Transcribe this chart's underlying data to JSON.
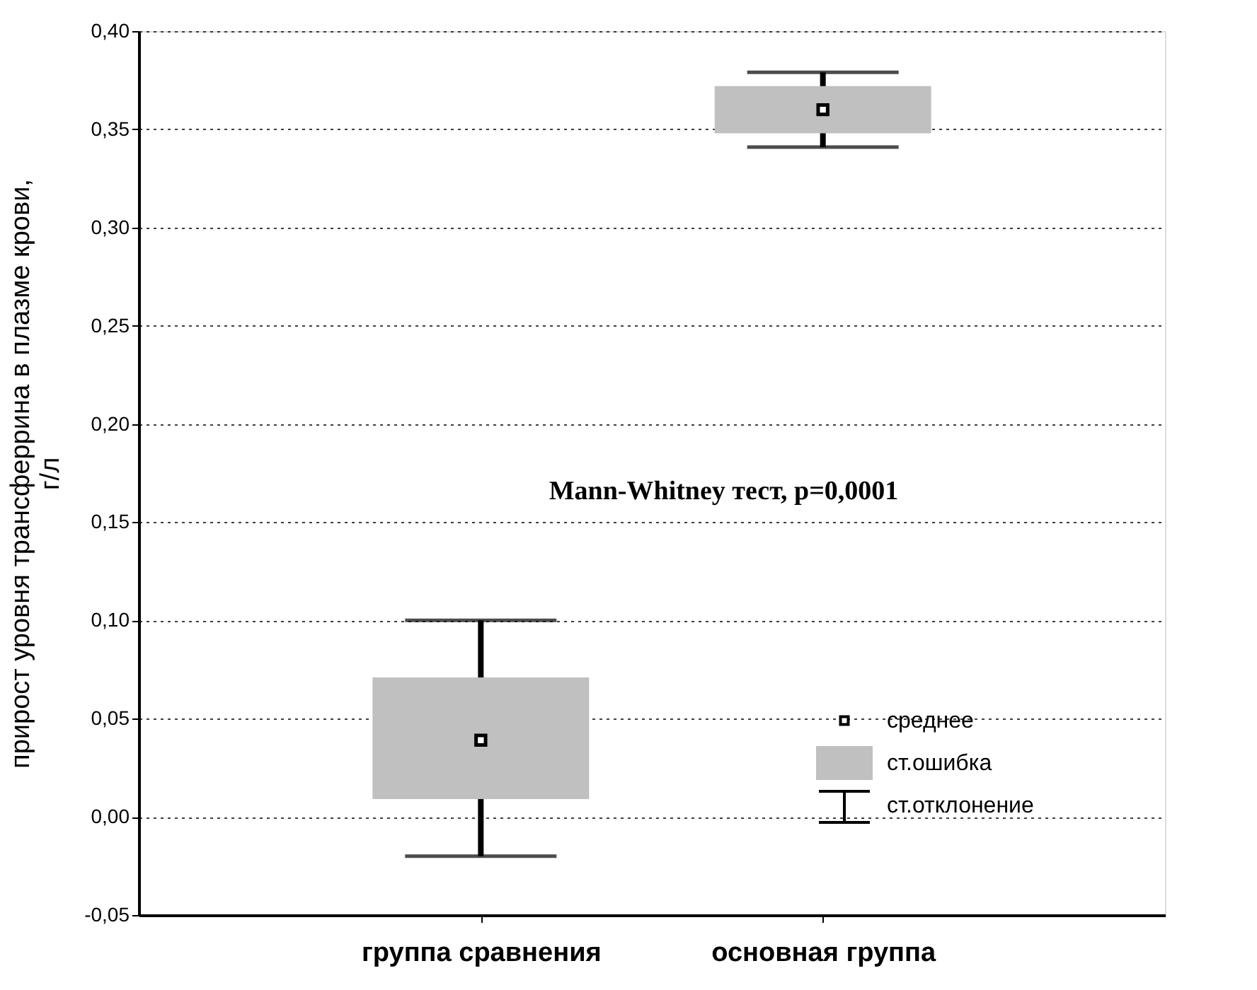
{
  "chart_data": {
    "type": "box",
    "categories": [
      "группа сравнения",
      "основная группа"
    ],
    "boxes": [
      {
        "low": -0.02,
        "q1": 0.009,
        "median": 0.039,
        "q3": 0.071,
        "high": 0.1
      },
      {
        "low": 0.341,
        "q1": 0.348,
        "median": 0.36,
        "q3": 0.372,
        "high": 0.379
      }
    ],
    "color": "#c0c0c0",
    "ylabel": "прирост уровня трансферрина в плазме крови, г/л",
    "ylim": [
      -0.05,
      0.4
    ],
    "yticks": [
      {
        "value": -0.05,
        "label": "-0,05"
      },
      {
        "value": 0,
        "label": "0,00"
      },
      {
        "value": 0.05,
        "label": "0,05"
      },
      {
        "value": 0.1,
        "label": "0,10"
      },
      {
        "value": 0.15,
        "label": "0,15"
      },
      {
        "value": 0.2,
        "label": "0,20"
      },
      {
        "value": 0.25,
        "label": "0,25"
      },
      {
        "value": 0.3,
        "label": "0,30"
      },
      {
        "value": 0.35,
        "label": "0,35"
      },
      {
        "value": 0.4,
        "label": "0,40"
      }
    ],
    "grid": "y",
    "annotations": [
      "Mann-Whitney тест, p=0,0001",
      "среднее",
      "ст.ошибка",
      "ст.отклонение"
    ]
  }
}
